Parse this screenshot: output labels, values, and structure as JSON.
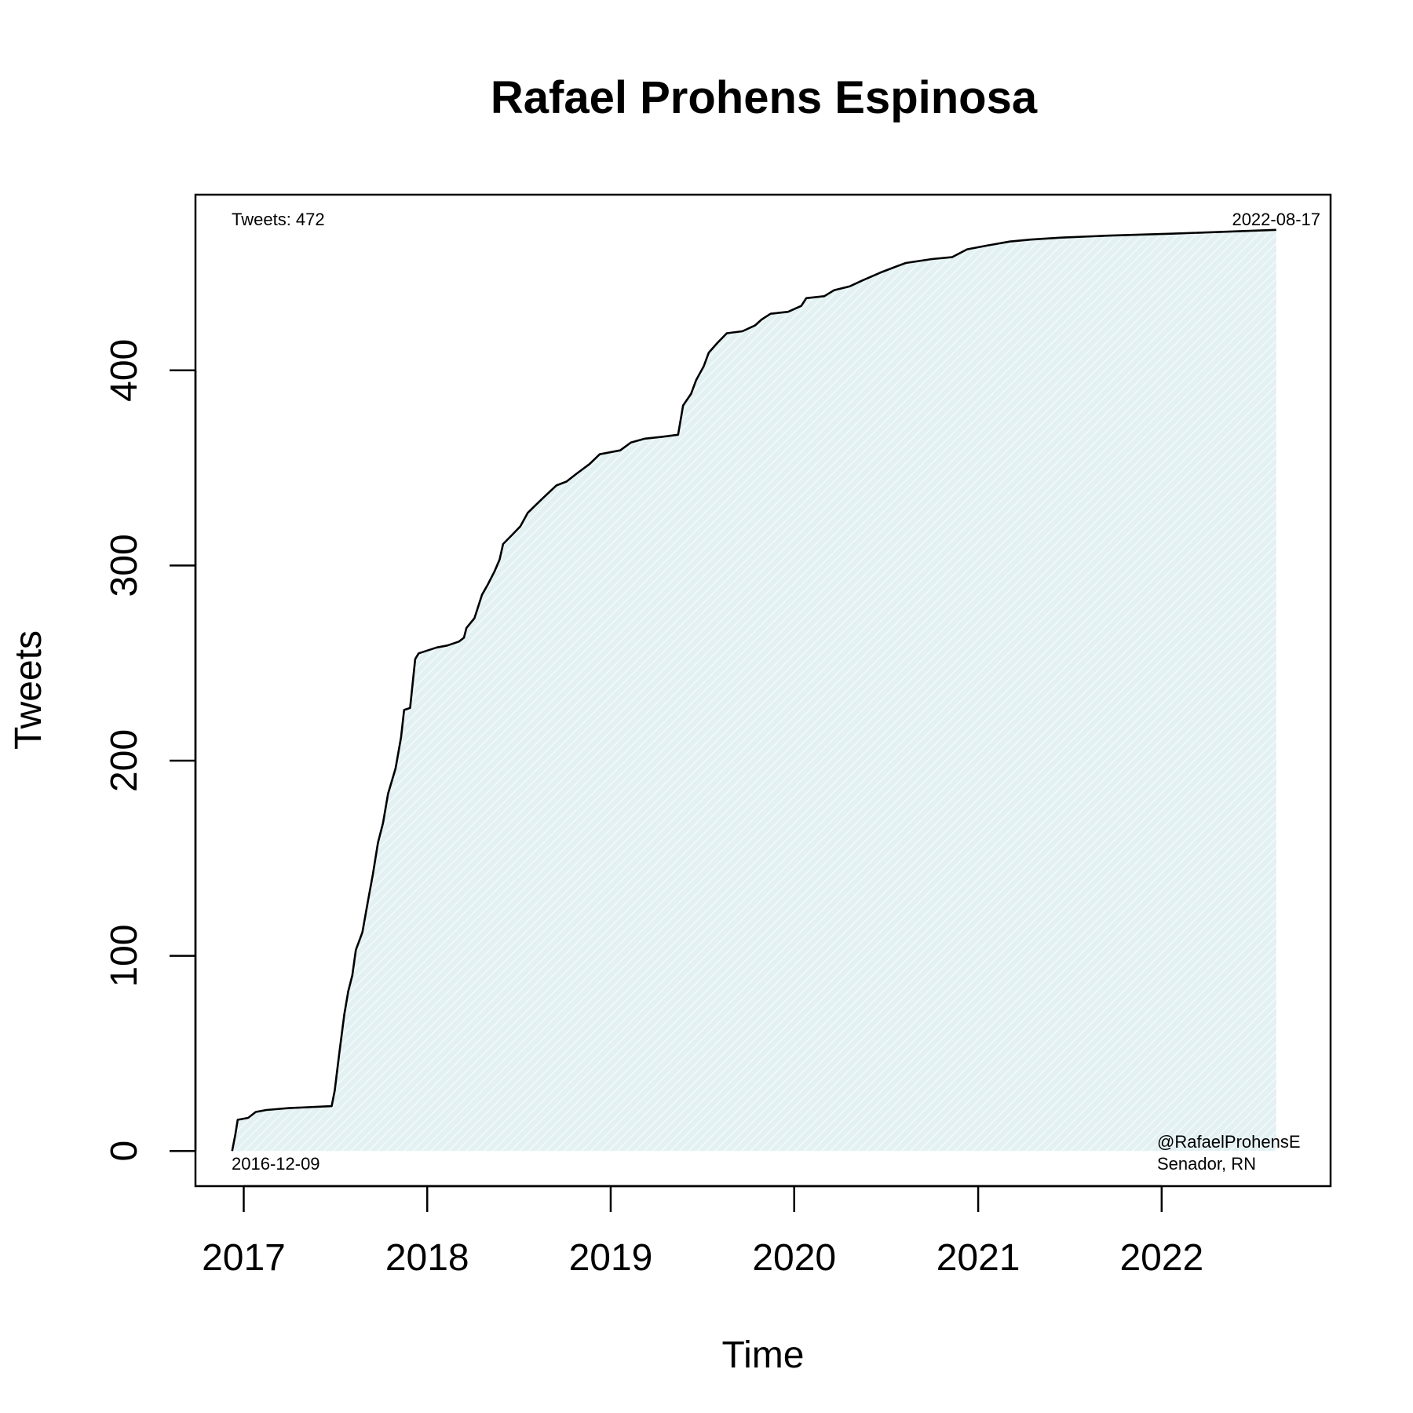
{
  "chart_data": {
    "type": "area",
    "title": "Rafael Prohens Espinosa",
    "xlabel": "Time",
    "ylabel": "Tweets",
    "x_ticks": [
      "2017",
      "2018",
      "2019",
      "2020",
      "2021",
      "2022"
    ],
    "y_ticks": [
      "0",
      "100",
      "200",
      "300",
      "400"
    ],
    "xlim": [
      "2016-09-27",
      "2022-12-03"
    ],
    "ylim": [
      -18,
      490
    ],
    "grid": false,
    "annotations": {
      "total": "Tweets: 472",
      "end_date": "2022-08-17",
      "start_date": "2016-12-09",
      "handle": "@RafaelProhensE",
      "role": "Senador, RN"
    },
    "colors": {
      "line": "#000000",
      "fill": "#e3f1f3",
      "hatch": "#f4fafb"
    },
    "series": [
      {
        "points": [
          [
            "2016-12-09",
            0
          ],
          [
            "2016-12-15",
            8
          ],
          [
            "2016-12-20",
            16
          ],
          [
            "2017-01-10",
            17
          ],
          [
            "2017-01-25",
            20
          ],
          [
            "2017-02-15",
            21
          ],
          [
            "2017-04-01",
            22
          ],
          [
            "2017-06-25",
            23
          ],
          [
            "2017-07-01",
            31
          ],
          [
            "2017-07-10",
            50
          ],
          [
            "2017-07-20",
            70
          ],
          [
            "2017-07-28",
            82
          ],
          [
            "2017-08-05",
            90
          ],
          [
            "2017-08-12",
            103
          ],
          [
            "2017-08-25",
            112
          ],
          [
            "2017-09-05",
            128
          ],
          [
            "2017-09-15",
            142
          ],
          [
            "2017-09-25",
            158
          ],
          [
            "2017-10-05",
            168
          ],
          [
            "2017-10-15",
            183
          ],
          [
            "2017-10-30",
            196
          ],
          [
            "2017-11-10",
            212
          ],
          [
            "2017-11-16",
            226
          ],
          [
            "2017-11-28",
            227
          ],
          [
            "2017-12-08",
            252
          ],
          [
            "2017-12-15",
            255
          ],
          [
            "2018-01-20",
            258
          ],
          [
            "2018-02-10",
            259
          ],
          [
            "2018-03-05",
            261
          ],
          [
            "2018-03-15",
            263
          ],
          [
            "2018-03-20",
            268
          ],
          [
            "2018-04-05",
            273
          ],
          [
            "2018-04-20",
            285
          ],
          [
            "2018-05-01",
            290
          ],
          [
            "2018-05-15",
            297
          ],
          [
            "2018-05-25",
            303
          ],
          [
            "2018-06-01",
            311
          ],
          [
            "2018-06-20",
            316
          ],
          [
            "2018-07-05",
            320
          ],
          [
            "2018-07-20",
            327
          ],
          [
            "2018-08-05",
            331
          ],
          [
            "2018-08-25",
            336
          ],
          [
            "2018-09-15",
            341
          ],
          [
            "2018-10-05",
            343
          ],
          [
            "2018-10-25",
            347
          ],
          [
            "2018-11-20",
            352
          ],
          [
            "2018-12-10",
            357
          ],
          [
            "2019-01-20",
            359
          ],
          [
            "2019-02-10",
            363
          ],
          [
            "2019-03-10",
            365
          ],
          [
            "2019-04-15",
            366
          ],
          [
            "2019-05-15",
            367
          ],
          [
            "2019-05-25",
            382
          ],
          [
            "2019-06-10",
            388
          ],
          [
            "2019-06-20",
            395
          ],
          [
            "2019-07-05",
            402
          ],
          [
            "2019-07-15",
            409
          ],
          [
            "2019-08-01",
            414
          ],
          [
            "2019-08-20",
            419
          ],
          [
            "2019-09-20",
            420
          ],
          [
            "2019-10-15",
            423
          ],
          [
            "2019-10-28",
            426
          ],
          [
            "2019-11-15",
            429
          ],
          [
            "2019-12-20",
            430
          ],
          [
            "2020-01-15",
            433
          ],
          [
            "2020-01-25",
            437
          ],
          [
            "2020-03-01",
            438
          ],
          [
            "2020-03-20",
            441
          ],
          [
            "2020-04-20",
            443
          ],
          [
            "2020-05-15",
            446
          ],
          [
            "2020-06-20",
            450
          ],
          [
            "2020-07-20",
            453
          ],
          [
            "2020-08-10",
            455
          ],
          [
            "2020-10-01",
            457
          ],
          [
            "2020-11-10",
            458
          ],
          [
            "2020-12-10",
            462
          ],
          [
            "2021-01-20",
            464
          ],
          [
            "2021-03-05",
            466
          ],
          [
            "2021-04-15",
            467
          ],
          [
            "2021-06-15",
            468
          ],
          [
            "2021-09-15",
            469
          ],
          [
            "2022-01-20",
            470
          ],
          [
            "2022-08-17",
            472
          ]
        ]
      }
    ]
  }
}
